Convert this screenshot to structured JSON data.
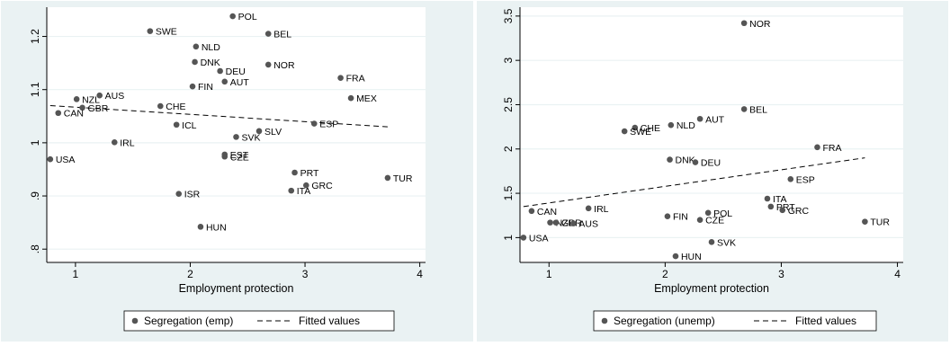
{
  "chart_data": [
    {
      "type": "scatter",
      "xlabel": "Employment protection",
      "ylabel": "",
      "xlim": [
        0.75,
        4.05
      ],
      "ylim": [
        0.775,
        1.255
      ],
      "xticks": [
        1,
        2,
        3,
        4
      ],
      "yticks": [
        0.8,
        0.9,
        1,
        1.1,
        1.2
      ],
      "ytick_labels": [
        ".8",
        ".9",
        "1",
        "1.1",
        "1.2"
      ],
      "grid": "horizontal",
      "legend_position": "bottom",
      "series": [
        {
          "name": "Segregation (emp)",
          "marker": "dot",
          "color": "#555555",
          "points": [
            {
              "label": "POL",
              "x": 2.37,
              "y": 1.238
            },
            {
              "label": "SWE",
              "x": 1.65,
              "y": 1.21
            },
            {
              "label": "BEL",
              "x": 2.68,
              "y": 1.205
            },
            {
              "label": "NLD",
              "x": 2.05,
              "y": 1.181
            },
            {
              "label": "DNK",
              "x": 2.04,
              "y": 1.152
            },
            {
              "label": "NOR",
              "x": 2.68,
              "y": 1.147
            },
            {
              "label": "DEU",
              "x": 2.26,
              "y": 1.135
            },
            {
              "label": "FRA",
              "x": 3.31,
              "y": 1.122
            },
            {
              "label": "AUT",
              "x": 2.3,
              "y": 1.115
            },
            {
              "label": "FIN",
              "x": 2.02,
              "y": 1.106
            },
            {
              "label": "AUS",
              "x": 1.21,
              "y": 1.089
            },
            {
              "label": "MEX",
              "x": 3.4,
              "y": 1.084
            },
            {
              "label": "NZL",
              "x": 1.01,
              "y": 1.082
            },
            {
              "label": "CHE",
              "x": 1.74,
              "y": 1.069
            },
            {
              "label": "GBR",
              "x": 1.06,
              "y": 1.066
            },
            {
              "label": "CAN",
              "x": 0.85,
              "y": 1.056
            },
            {
              "label": "ESP",
              "x": 3.08,
              "y": 1.036
            },
            {
              "label": "ICL",
              "x": 1.88,
              "y": 1.034
            },
            {
              "label": "SLV",
              "x": 2.6,
              "y": 1.022
            },
            {
              "label": "SVK",
              "x": 2.4,
              "y": 1.011
            },
            {
              "label": "IRL",
              "x": 1.34,
              "y": 1.001
            },
            {
              "label": "EST",
              "x": 2.3,
              "y": 0.978
            },
            {
              "label": "CZE",
              "x": 2.3,
              "y": 0.974
            },
            {
              "label": "USA",
              "x": 0.78,
              "y": 0.969
            },
            {
              "label": "PRT",
              "x": 2.91,
              "y": 0.944
            },
            {
              "label": "TUR",
              "x": 3.72,
              "y": 0.934
            },
            {
              "label": "GRC",
              "x": 3.01,
              "y": 0.92
            },
            {
              "label": "ITA",
              "x": 2.88,
              "y": 0.91
            },
            {
              "label": "ISR",
              "x": 1.9,
              "y": 0.904
            },
            {
              "label": "HUN",
              "x": 2.09,
              "y": 0.842
            }
          ]
        },
        {
          "name": "Fitted values",
          "line": "dashed",
          "color": "#000000",
          "points": [
            {
              "x": 0.78,
              "y": 1.07
            },
            {
              "x": 3.72,
              "y": 1.03
            }
          ]
        }
      ]
    },
    {
      "type": "scatter",
      "xlabel": "Employment protection",
      "ylabel": "",
      "xlim": [
        0.75,
        4.05
      ],
      "ylim": [
        0.72,
        3.6
      ],
      "xticks": [
        1,
        2,
        3,
        4
      ],
      "yticks": [
        1,
        1.5,
        2,
        2.5,
        3,
        3.5
      ],
      "ytick_labels": [
        "1",
        "1.5",
        "2",
        "2.5",
        "3",
        "3.5"
      ],
      "grid": "horizontal",
      "legend_position": "bottom",
      "series": [
        {
          "name": "Segregation (unemp)",
          "marker": "dot",
          "color": "#555555",
          "points": [
            {
              "label": "NOR",
              "x": 2.68,
              "y": 3.42
            },
            {
              "label": "BEL",
              "x": 2.68,
              "y": 2.45
            },
            {
              "label": "AUT",
              "x": 2.3,
              "y": 2.34
            },
            {
              "label": "NLD",
              "x": 2.05,
              "y": 2.27
            },
            {
              "label": "CHE",
              "x": 1.74,
              "y": 2.24
            },
            {
              "label": "SWE",
              "x": 1.65,
              "y": 2.2
            },
            {
              "label": "FRA",
              "x": 3.31,
              "y": 2.02
            },
            {
              "label": "DNK",
              "x": 2.04,
              "y": 1.88
            },
            {
              "label": "DEU",
              "x": 2.26,
              "y": 1.85
            },
            {
              "label": "ESP",
              "x": 3.08,
              "y": 1.66
            },
            {
              "label": "ITA",
              "x": 2.88,
              "y": 1.44
            },
            {
              "label": "PRT",
              "x": 2.91,
              "y": 1.35
            },
            {
              "label": "IRL",
              "x": 1.34,
              "y": 1.33
            },
            {
              "label": "GRC",
              "x": 3.01,
              "y": 1.31
            },
            {
              "label": "CAN",
              "x": 0.85,
              "y": 1.3
            },
            {
              "label": "POL",
              "x": 2.37,
              "y": 1.28
            },
            {
              "label": "FIN",
              "x": 2.02,
              "y": 1.24
            },
            {
              "label": "CZE",
              "x": 2.3,
              "y": 1.2
            },
            {
              "label": "TUR",
              "x": 3.72,
              "y": 1.18
            },
            {
              "label": "NZL",
              "x": 1.01,
              "y": 1.17
            },
            {
              "label": "GBR",
              "x": 1.06,
              "y": 1.17
            },
            {
              "label": "AUS",
              "x": 1.21,
              "y": 1.16
            },
            {
              "label": "USA",
              "x": 0.78,
              "y": 1.0
            },
            {
              "label": "SVK",
              "x": 2.4,
              "y": 0.95
            },
            {
              "label": "HUN",
              "x": 2.09,
              "y": 0.79
            }
          ]
        },
        {
          "name": "Fitted values",
          "line": "dashed",
          "color": "#000000",
          "points": [
            {
              "x": 0.78,
              "y": 1.35
            },
            {
              "x": 3.72,
              "y": 1.9
            }
          ]
        }
      ]
    }
  ]
}
